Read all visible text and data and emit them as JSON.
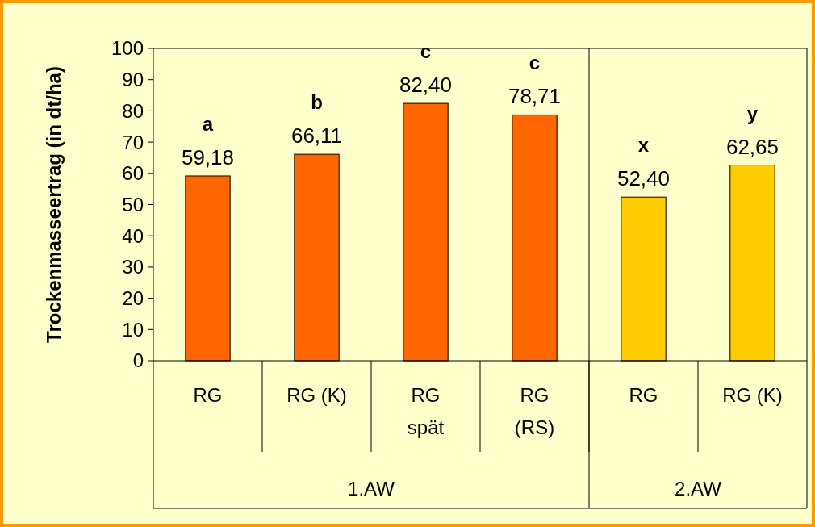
{
  "chart_data": {
    "type": "bar",
    "ylabel": "Trockenmasseertrag (in dt/ha)",
    "categories": [
      "RG",
      "RG (K)",
      "RG\nspät",
      "RG\n(RS)",
      "RG",
      "RG (K)"
    ],
    "values": [
      59.18,
      66.11,
      82.4,
      78.71,
      52.4,
      62.65
    ],
    "colors": [
      "#ff6600",
      "#ff6600",
      "#ff6600",
      "#ff6600",
      "#ffcc00",
      "#ffcc00"
    ],
    "value_labels": [
      "59,18",
      "66,11",
      "82,40",
      "78,71",
      "52,40",
      "62,65"
    ],
    "annotations": [
      "a",
      "b",
      "c",
      "c",
      "x",
      "y",
      "1.AW",
      "2.AW"
    ],
    "ylim": [
      0,
      100
    ],
    "yticks": [
      0,
      10,
      20,
      30,
      40,
      50,
      60,
      70,
      80,
      90,
      100
    ],
    "grid": false
  }
}
